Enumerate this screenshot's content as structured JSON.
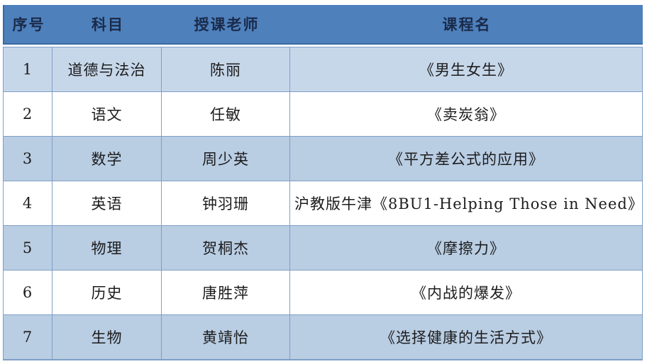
{
  "table": {
    "headers": [
      "序号",
      "科目",
      "授课老师",
      "课程名"
    ],
    "rows": [
      {
        "no": "1",
        "subject": "道德与法治",
        "teacher": "陈丽",
        "course": "《男生女生》"
      },
      {
        "no": "2",
        "subject": "语文",
        "teacher": "任敏",
        "course": "《卖炭翁》"
      },
      {
        "no": "3",
        "subject": "数学",
        "teacher": "周少英",
        "course": "《平方差公式的应用》"
      },
      {
        "no": "4",
        "subject": "英语",
        "teacher": "钟羽珊",
        "course": "沪教版牛津《8BU1-Helping Those in Need》"
      },
      {
        "no": "5",
        "subject": "物理",
        "teacher": "贺桐杰",
        "course": "《摩擦力》"
      },
      {
        "no": "6",
        "subject": "历史",
        "teacher": "唐胜萍",
        "course": "《内战的爆发》"
      },
      {
        "no": "7",
        "subject": "生物",
        "teacher": "黄靖怡",
        "course": "《选择健康的生活方式》"
      }
    ],
    "colors": {
      "header_bg": "#4e80bc",
      "header_text": "#1a2b4a",
      "header_edge": "#3a6aa5",
      "row_first_bg": "#c7d7ea",
      "row_odd_bg": "#b9cde3",
      "row_even_bg": "#ffffff",
      "border": "#7e9fc5",
      "body_text": "#1c1c1c",
      "page_bg": "#ffffff"
    }
  }
}
